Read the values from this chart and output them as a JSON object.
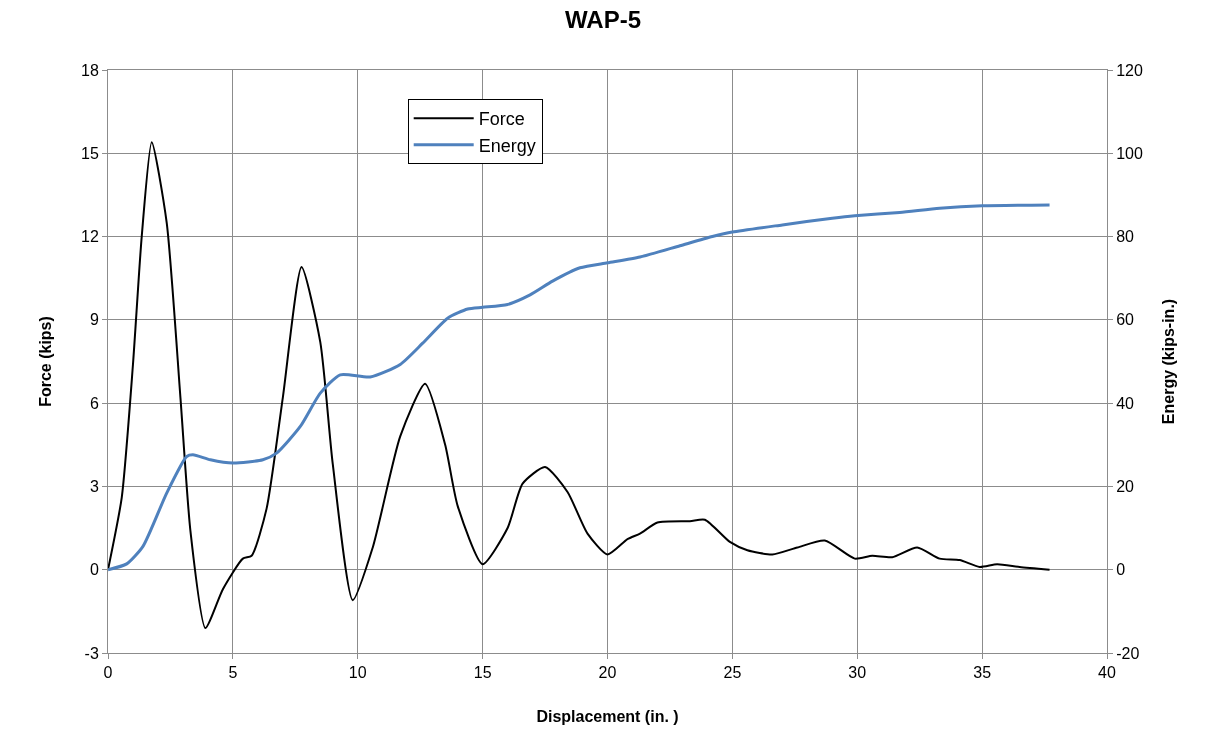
{
  "chart_data": {
    "type": "line",
    "title": "WAP-5",
    "xlabel": "Displacement (in. )",
    "ylabel": "Force (kips)",
    "y2label": "Energy (kips-in.)",
    "xlim": [
      0,
      40
    ],
    "xticks": [
      0,
      5,
      10,
      15,
      20,
      25,
      30,
      35,
      40
    ],
    "ylim": [
      -3,
      18
    ],
    "yticks": [
      -3,
      0,
      3,
      6,
      9,
      12,
      15,
      18
    ],
    "y2lim": [
      -20,
      120
    ],
    "y2ticks": [
      -20,
      0,
      20,
      40,
      60,
      80,
      100,
      120
    ],
    "grid": true,
    "legend": "top",
    "marker": "none",
    "line_style": "solid",
    "series": [
      {
        "name": "Force",
        "color": "#000000",
        "x": [
          0,
          0.55,
          1.0,
          1.35,
          1.75,
          2.35,
          2.9,
          3.3,
          3.9,
          4.6,
          5.4,
          5.75,
          6.35,
          7.0,
          7.75,
          8.5,
          9.0,
          9.8,
          10.6,
          11.7,
          12.7,
          13.5,
          14.0,
          15.0,
          16.0,
          16.6,
          17.5,
          18.4,
          19.2,
          20.0,
          20.8,
          21.3,
          22.0,
          23.3,
          23.9,
          24.9,
          25.6,
          26.6,
          27.6,
          28.7,
          29.9,
          30.6,
          31.4,
          32.4,
          33.3,
          34.1,
          34.9,
          35.6,
          36.5,
          37.7
        ],
        "values": [
          0,
          2.6,
          7.4,
          12,
          15.4,
          12.5,
          6.2,
          1.4,
          -2.1,
          -0.7,
          0.4,
          0.5,
          2.2,
          6.2,
          10.9,
          8.2,
          3.8,
          -1.1,
          0.8,
          4.8,
          6.7,
          4.5,
          2.3,
          0.2,
          1.5,
          3.1,
          3.7,
          2.8,
          1.3,
          0.55,
          1.1,
          1.3,
          1.7,
          1.75,
          1.8,
          1.0,
          0.7,
          0.55,
          0.8,
          1.05,
          0.4,
          0.5,
          0.45,
          0.8,
          0.4,
          0.35,
          0.1,
          0.2,
          0.1,
          0
        ]
      },
      {
        "name": "Energy",
        "color": "#4f81bd",
        "axis": "y2",
        "x": [
          0,
          0.75,
          1.4,
          2.35,
          3.15,
          3.4,
          4.1,
          5.0,
          6.2,
          6.75,
          7.7,
          8.5,
          9.3,
          10.5,
          11.7,
          12.6,
          13.6,
          14.4,
          15.0,
          16.0,
          16.9,
          17.8,
          18.9,
          20.0,
          21.3,
          22.9,
          24.2,
          25.0,
          27.0,
          29.0,
          29.9,
          31.7,
          33.3,
          35.0,
          37.7
        ],
        "values": [
          0,
          1.4,
          5.6,
          18.4,
          27.2,
          27.6,
          26.4,
          25.6,
          26.4,
          28,
          34.4,
          42.4,
          46.8,
          46.3,
          49.3,
          54.4,
          60.4,
          62.6,
          63.0,
          63.7,
          66.0,
          69.3,
          72.5,
          73.7,
          75.1,
          77.8,
          80,
          81.1,
          82.8,
          84.4,
          85,
          85.8,
          86.8,
          87.4,
          87.6
        ]
      }
    ]
  }
}
